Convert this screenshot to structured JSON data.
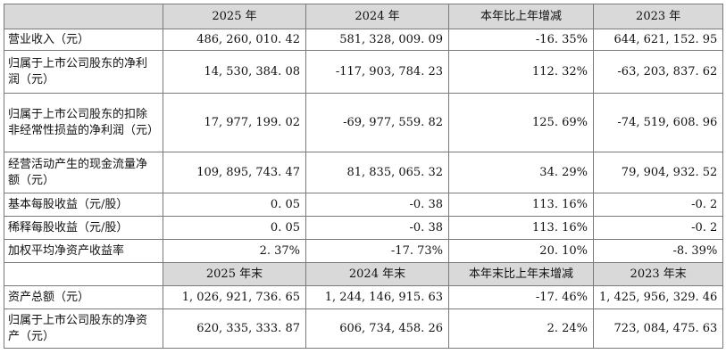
{
  "header1": [
    "",
    "2025 年",
    "2024 年",
    "本年比上年增减",
    "2023 年"
  ],
  "rows1": [
    {
      "label": "营业收入（元）",
      "v2025": "486, 260, 010. 42",
      "v2024": "581, 328, 009. 09",
      "change": "-16. 35%",
      "v2023": "644, 621, 152. 95"
    },
    {
      "label": "归属于上市公司股东的净利润（元）",
      "v2025": "14, 530, 384. 08",
      "v2024": "-117, 903, 784. 23",
      "change": "112. 32%",
      "v2023": "-63, 203, 837. 62"
    },
    {
      "label": "归属于上市公司股东的扣除非经常性损益的净利润（元）",
      "v2025": "17, 977, 199. 02",
      "v2024": "-69, 977, 559. 82",
      "change": "125. 69%",
      "v2023": "-74, 519, 608. 96"
    },
    {
      "label": "经营活动产生的现金流量净额（元）",
      "v2025": "109, 895, 743. 47",
      "v2024": "81, 835, 065. 32",
      "change": "34. 29%",
      "v2023": "79, 904, 932. 52"
    },
    {
      "label": "基本每股收益（元/股）",
      "v2025": "0. 05",
      "v2024": "-0. 38",
      "change": "113. 16%",
      "v2023": "-0. 2"
    },
    {
      "label": "稀释每股收益（元/股）",
      "v2025": "0. 05",
      "v2024": "-0. 38",
      "change": "113. 16%",
      "v2023": "-0. 2"
    },
    {
      "label": "加权平均净资产收益率",
      "v2025": "2. 37%",
      "v2024": "-17. 73%",
      "change": "20. 10%",
      "v2023": "-8. 39%"
    }
  ],
  "header2": [
    "",
    "2025 年末",
    "2024 年末",
    "本年末比上年末增减",
    "2023 年末"
  ],
  "rows2": [
    {
      "label": "资产总额（元）",
      "v2025": "1, 026, 921, 736. 65",
      "v2024": "1, 244, 146, 915. 63",
      "change": "-17. 46%",
      "v2023": "1, 425, 956, 329. 46"
    },
    {
      "label": "归属于上市公司股东的净资产（元）",
      "v2025": "620, 335, 333. 87",
      "v2024": "606, 734, 458. 26",
      "change": "2. 24%",
      "v2023": "723, 084, 475. 63"
    }
  ]
}
